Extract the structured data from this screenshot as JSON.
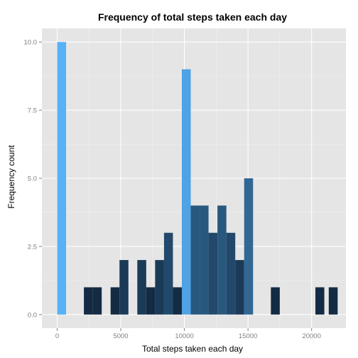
{
  "chart_data": {
    "type": "bar",
    "title": "Frequency of total steps taken each day",
    "xlabel": "Total steps taken each day",
    "ylabel": "Frequency count",
    "xlim": [
      -1200,
      22700
    ],
    "ylim": [
      -0.5,
      10.5
    ],
    "xticks": [
      0,
      5000,
      10000,
      15000,
      20000
    ],
    "xtick_labels": [
      "0",
      "5000",
      "10000",
      "15000",
      "20000"
    ],
    "yticks": [
      0,
      2.5,
      5,
      7.5,
      10
    ],
    "ytick_labels": [
      "0.0",
      "2.5",
      "5.0",
      "7.5",
      "10.0"
    ],
    "grid": true,
    "panel_background": "#e5e5e5",
    "grid_color": "#ffffff",
    "fill_scale": {
      "low": "#132b43",
      "high": "#56b1f7",
      "low_value": 1,
      "high_value": 10
    },
    "bin_width": 700,
    "bins": [
      {
        "center": 350,
        "count": 10
      },
      {
        "center": 2450,
        "count": 1
      },
      {
        "center": 3150,
        "count": 1
      },
      {
        "center": 4550,
        "count": 1
      },
      {
        "center": 5250,
        "count": 2
      },
      {
        "center": 6650,
        "count": 2
      },
      {
        "center": 7350,
        "count": 1
      },
      {
        "center": 8050,
        "count": 2
      },
      {
        "center": 8750,
        "count": 3
      },
      {
        "center": 9450,
        "count": 1
      },
      {
        "center": 10150,
        "count": 9
      },
      {
        "center": 10850,
        "count": 4
      },
      {
        "center": 11550,
        "count": 4
      },
      {
        "center": 12250,
        "count": 3
      },
      {
        "center": 12950,
        "count": 4
      },
      {
        "center": 13650,
        "count": 3
      },
      {
        "center": 14350,
        "count": 2
      },
      {
        "center": 15050,
        "count": 5
      },
      {
        "center": 17150,
        "count": 1
      },
      {
        "center": 20650,
        "count": 1
      },
      {
        "center": 21700,
        "count": 1
      }
    ]
  }
}
